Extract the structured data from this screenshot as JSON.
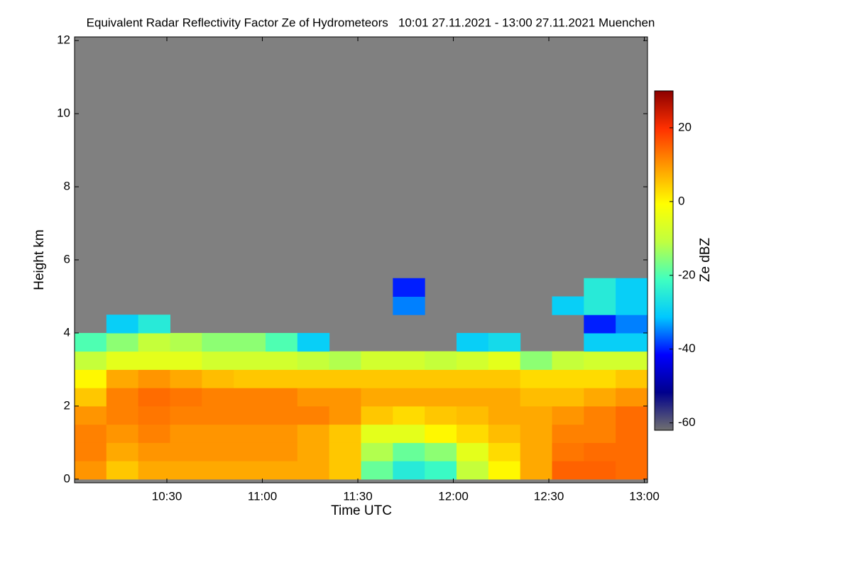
{
  "chart_data": {
    "type": "heatmap",
    "title": "Equivalent Radar Reflectivity Factor Ze of Hydrometeors   10:01 27.11.2021 - 13:00 27.11.2021 Muenchen",
    "x_label": "Time UTC",
    "y_label": "Height km",
    "colorbar_label": "Ze dBZ",
    "xlim": [
      601,
      781
    ],
    "ylim": [
      -0.1,
      12.1
    ],
    "zlim": [
      -62,
      30
    ],
    "xticks": [
      {
        "value": 630,
        "label": "10:30"
      },
      {
        "value": 660,
        "label": "11:00"
      },
      {
        "value": 690,
        "label": "11:30"
      },
      {
        "value": 720,
        "label": "12:00"
      },
      {
        "value": 750,
        "label": "12:30"
      },
      {
        "value": 780,
        "label": "13:00"
      }
    ],
    "yticks": [
      0,
      2,
      4,
      6,
      8,
      10,
      12
    ],
    "zticks": [
      -60,
      -40,
      -20,
      0,
      20
    ],
    "x_bins": [
      601,
      611,
      621,
      631,
      641,
      651,
      661,
      671,
      681,
      691,
      701,
      711,
      721,
      731,
      741,
      751,
      761,
      771,
      781
    ],
    "y_bins": [
      0,
      0.5,
      1,
      1.5,
      2,
      2.5,
      3,
      3.5,
      4,
      4.5,
      5,
      5.5,
      6
    ],
    "colormap": [
      "#707070",
      "#00008c",
      "#0000ff",
      "#00c8ff",
      "#40ffc0",
      "#c0ff40",
      "#ffff00",
      "#ff9a00",
      "#ff3000",
      "#8c0000"
    ],
    "no_data_color": "#808080",
    "values": [
      [
        10,
        5,
        8,
        8,
        8,
        8,
        8,
        8,
        5,
        -18,
        -25,
        -22,
        -10,
        0,
        8,
        15,
        15,
        14
      ],
      [
        12,
        8,
        10,
        10,
        10,
        10,
        10,
        8,
        5,
        -12,
        -18,
        -15,
        -5,
        3,
        8,
        13,
        14,
        14
      ],
      [
        12,
        10,
        12,
        10,
        10,
        10,
        10,
        8,
        5,
        -5,
        -5,
        0,
        3,
        6,
        8,
        12,
        12,
        14
      ],
      [
        10,
        12,
        13,
        12,
        12,
        12,
        12,
        12,
        10,
        5,
        3,
        5,
        6,
        8,
        8,
        10,
        12,
        14
      ],
      [
        5,
        12,
        14,
        13,
        12,
        12,
        12,
        10,
        10,
        8,
        8,
        8,
        8,
        8,
        6,
        6,
        8,
        10
      ],
      [
        0,
        8,
        10,
        8,
        6,
        5,
        5,
        5,
        5,
        5,
        5,
        5,
        5,
        5,
        3,
        3,
        3,
        5
      ],
      [
        -10,
        -5,
        -5,
        -5,
        -8,
        -8,
        -8,
        -10,
        -12,
        -8,
        -8,
        -10,
        -8,
        -5,
        -15,
        -10,
        -8,
        -8
      ],
      [
        -20,
        -15,
        -10,
        -12,
        -15,
        -15,
        -20,
        -30,
        null,
        null,
        null,
        null,
        -30,
        -28,
        null,
        null,
        -30,
        -30
      ],
      [
        null,
        -30,
        -25,
        null,
        null,
        null,
        null,
        null,
        null,
        null,
        null,
        null,
        null,
        null,
        null,
        null,
        -40,
        -35
      ],
      [
        null,
        null,
        null,
        null,
        null,
        null,
        null,
        null,
        null,
        null,
        -35,
        null,
        null,
        null,
        null,
        -30,
        -25,
        -30
      ],
      [
        null,
        null,
        null,
        null,
        null,
        null,
        null,
        null,
        null,
        null,
        -40,
        null,
        null,
        null,
        null,
        null,
        -25,
        -30
      ],
      [
        null,
        null,
        null,
        null,
        null,
        null,
        null,
        null,
        null,
        null,
        null,
        null,
        null,
        null,
        null,
        null,
        null,
        null
      ]
    ]
  }
}
